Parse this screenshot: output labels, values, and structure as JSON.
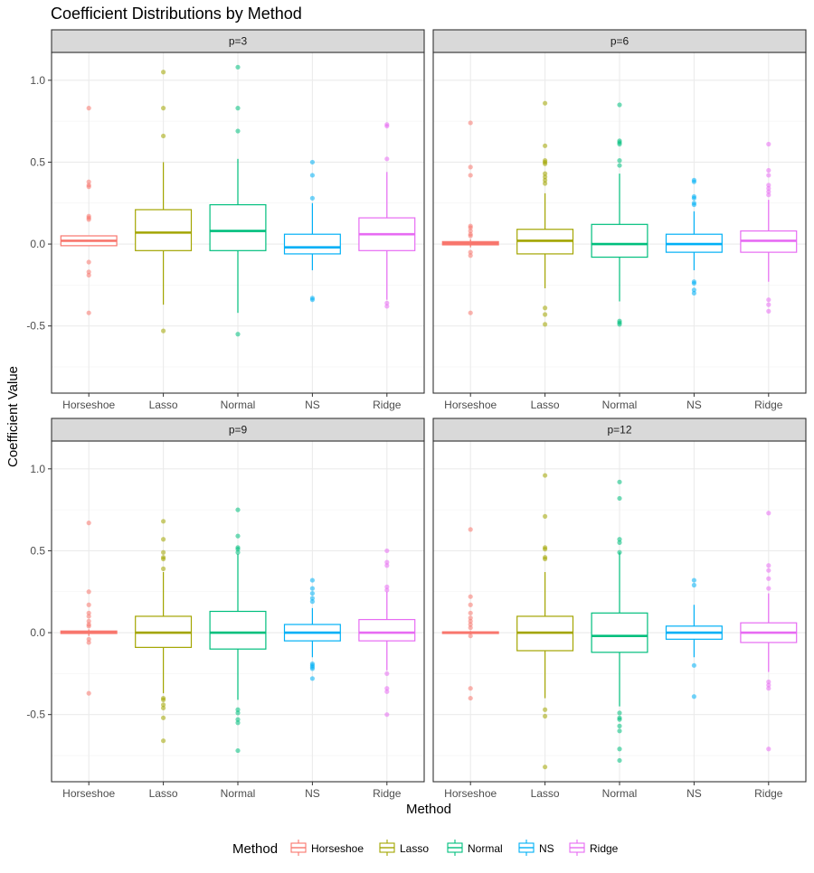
{
  "chart_data": {
    "type": "boxplot",
    "title": "Coefficient Distributions by Method",
    "xlabel": "Method",
    "ylabel": "Coefficient Value",
    "categories": [
      "Horseshoe",
      "Lasso",
      "Normal",
      "NS",
      "Ridge"
    ],
    "colors": {
      "Horseshoe": "#F8766D",
      "Lasso": "#A3A500",
      "Normal": "#00BF7D",
      "NS": "#00B0F6",
      "Ridge": "#E76BF3"
    },
    "ylim": [
      -0.91,
      1.17
    ],
    "yticks": [
      -0.5,
      0.0,
      0.5,
      1.0
    ],
    "ytick_labels": [
      "-0.5",
      "0.0",
      "0.5",
      "1.0"
    ],
    "legend": {
      "title": "Method",
      "position": "bottom",
      "entries": [
        "Horseshoe",
        "Lasso",
        "Normal",
        "NS",
        "Ridge"
      ]
    },
    "panels": [
      {
        "label": "p=3",
        "boxes": [
          {
            "method": "Horseshoe",
            "q1": -0.01,
            "median": 0.02,
            "q3": 0.05,
            "whisker_low": -0.01,
            "whisker_high": 0.05,
            "outliers": [
              0.83,
              0.38,
              0.36,
              0.35,
              0.17,
              0.16,
              0.15,
              -0.11,
              -0.17,
              -0.19,
              -0.42
            ]
          },
          {
            "method": "Lasso",
            "q1": -0.04,
            "median": 0.07,
            "q3": 0.21,
            "whisker_low": -0.37,
            "whisker_high": 0.5,
            "outliers": [
              1.05,
              0.83,
              0.66,
              -0.53
            ]
          },
          {
            "method": "Normal",
            "q1": -0.04,
            "median": 0.08,
            "q3": 0.24,
            "whisker_low": -0.42,
            "whisker_high": 0.52,
            "outliers": [
              1.08,
              0.83,
              0.69,
              -0.55
            ]
          },
          {
            "method": "NS",
            "q1": -0.06,
            "median": -0.02,
            "q3": 0.06,
            "whisker_low": -0.16,
            "whisker_high": 0.25,
            "outliers": [
              0.5,
              0.42,
              0.28,
              -0.33,
              -0.34
            ]
          },
          {
            "method": "Ridge",
            "q1": -0.04,
            "median": 0.06,
            "q3": 0.16,
            "whisker_low": -0.34,
            "whisker_high": 0.44,
            "outliers": [
              0.73,
              0.72,
              0.52,
              -0.36,
              -0.38
            ]
          }
        ]
      },
      {
        "label": "p=6",
        "boxes": [
          {
            "method": "Horseshoe",
            "q1": -0.005,
            "median": 0.005,
            "q3": 0.015,
            "whisker_low": -0.02,
            "whisker_high": 0.03,
            "outliers": [
              0.74,
              0.47,
              0.42,
              0.11,
              0.1,
              0.08,
              0.06,
              0.05,
              -0.05,
              -0.07,
              -0.42
            ]
          },
          {
            "method": "Lasso",
            "q1": -0.06,
            "median": 0.02,
            "q3": 0.09,
            "whisker_low": -0.27,
            "whisker_high": 0.31,
            "outliers": [
              0.86,
              0.6,
              0.51,
              0.5,
              0.49,
              0.43,
              0.41,
              0.39,
              0.37,
              -0.39,
              -0.43,
              -0.49
            ]
          },
          {
            "method": "Normal",
            "q1": -0.08,
            "median": 0.0,
            "q3": 0.12,
            "whisker_low": -0.35,
            "whisker_high": 0.43,
            "outliers": [
              0.85,
              0.63,
              0.62,
              0.61,
              0.51,
              0.48,
              -0.47,
              -0.48,
              -0.49
            ]
          },
          {
            "method": "NS",
            "q1": -0.05,
            "median": 0.0,
            "q3": 0.06,
            "whisker_low": -0.16,
            "whisker_high": 0.2,
            "outliers": [
              0.39,
              0.38,
              0.29,
              0.28,
              0.25,
              0.24,
              -0.23,
              -0.24,
              -0.28,
              -0.3
            ]
          },
          {
            "method": "Ridge",
            "q1": -0.05,
            "median": 0.02,
            "q3": 0.08,
            "whisker_low": -0.23,
            "whisker_high": 0.27,
            "outliers": [
              0.61,
              0.45,
              0.42,
              0.36,
              0.34,
              0.32,
              0.3,
              -0.34,
              -0.37,
              -0.41
            ]
          }
        ]
      },
      {
        "label": "p=9",
        "boxes": [
          {
            "method": "Horseshoe",
            "q1": -0.005,
            "median": 0.003,
            "q3": 0.01,
            "whisker_low": -0.02,
            "whisker_high": 0.02,
            "outliers": [
              0.67,
              0.25,
              0.17,
              0.12,
              0.1,
              0.07,
              0.05,
              0.04,
              -0.04,
              -0.06,
              -0.37
            ]
          },
          {
            "method": "Lasso",
            "q1": -0.09,
            "median": 0.0,
            "q3": 0.1,
            "whisker_low": -0.37,
            "whisker_high": 0.37,
            "outliers": [
              0.68,
              0.57,
              0.49,
              0.46,
              0.45,
              0.39,
              -0.4,
              -0.41,
              -0.44,
              -0.46,
              -0.52,
              -0.66
            ]
          },
          {
            "method": "Normal",
            "q1": -0.1,
            "median": 0.0,
            "q3": 0.13,
            "whisker_low": -0.41,
            "whisker_high": 0.48,
            "outliers": [
              0.75,
              0.59,
              0.52,
              0.51,
              0.49,
              -0.47,
              -0.49,
              -0.53,
              -0.55,
              -0.72
            ]
          },
          {
            "method": "NS",
            "q1": -0.05,
            "median": 0.0,
            "q3": 0.05,
            "whisker_low": -0.15,
            "whisker_high": 0.15,
            "outliers": [
              0.32,
              0.27,
              0.24,
              0.21,
              0.19,
              -0.19,
              -0.2,
              -0.21,
              -0.22,
              -0.28
            ]
          },
          {
            "method": "Ridge",
            "q1": -0.05,
            "median": 0.0,
            "q3": 0.08,
            "whisker_low": -0.23,
            "whisker_high": 0.25,
            "outliers": [
              0.5,
              0.43,
              0.41,
              0.28,
              0.26,
              -0.25,
              -0.34,
              -0.36,
              -0.5
            ]
          }
        ]
      },
      {
        "label": "p=12",
        "boxes": [
          {
            "method": "Horseshoe",
            "q1": -0.005,
            "median": 0.0,
            "q3": 0.005,
            "whisker_low": -0.01,
            "whisker_high": 0.01,
            "outliers": [
              0.63,
              0.22,
              0.17,
              0.12,
              0.09,
              0.07,
              0.05,
              0.03,
              -0.02,
              -0.34,
              -0.4
            ]
          },
          {
            "method": "Lasso",
            "q1": -0.11,
            "median": 0.0,
            "q3": 0.1,
            "whisker_low": -0.4,
            "whisker_high": 0.37,
            "outliers": [
              0.96,
              0.71,
              0.52,
              0.51,
              0.46,
              0.45,
              -0.47,
              -0.51,
              -0.82
            ]
          },
          {
            "method": "Normal",
            "q1": -0.12,
            "median": -0.02,
            "q3": 0.12,
            "whisker_low": -0.45,
            "whisker_high": 0.49,
            "outliers": [
              0.92,
              0.82,
              0.57,
              0.55,
              0.49,
              -0.49,
              -0.52,
              -0.53,
              -0.57,
              -0.6,
              -0.71,
              -0.78
            ]
          },
          {
            "method": "NS",
            "q1": -0.04,
            "median": 0.0,
            "q3": 0.04,
            "whisker_low": -0.15,
            "whisker_high": 0.17,
            "outliers": [
              0.32,
              0.29,
              -0.2,
              -0.39
            ]
          },
          {
            "method": "Ridge",
            "q1": -0.06,
            "median": 0.0,
            "q3": 0.06,
            "whisker_low": -0.24,
            "whisker_high": 0.24,
            "outliers": [
              0.73,
              0.41,
              0.38,
              0.33,
              0.27,
              -0.3,
              -0.32,
              -0.34,
              -0.71
            ]
          }
        ]
      }
    ]
  }
}
